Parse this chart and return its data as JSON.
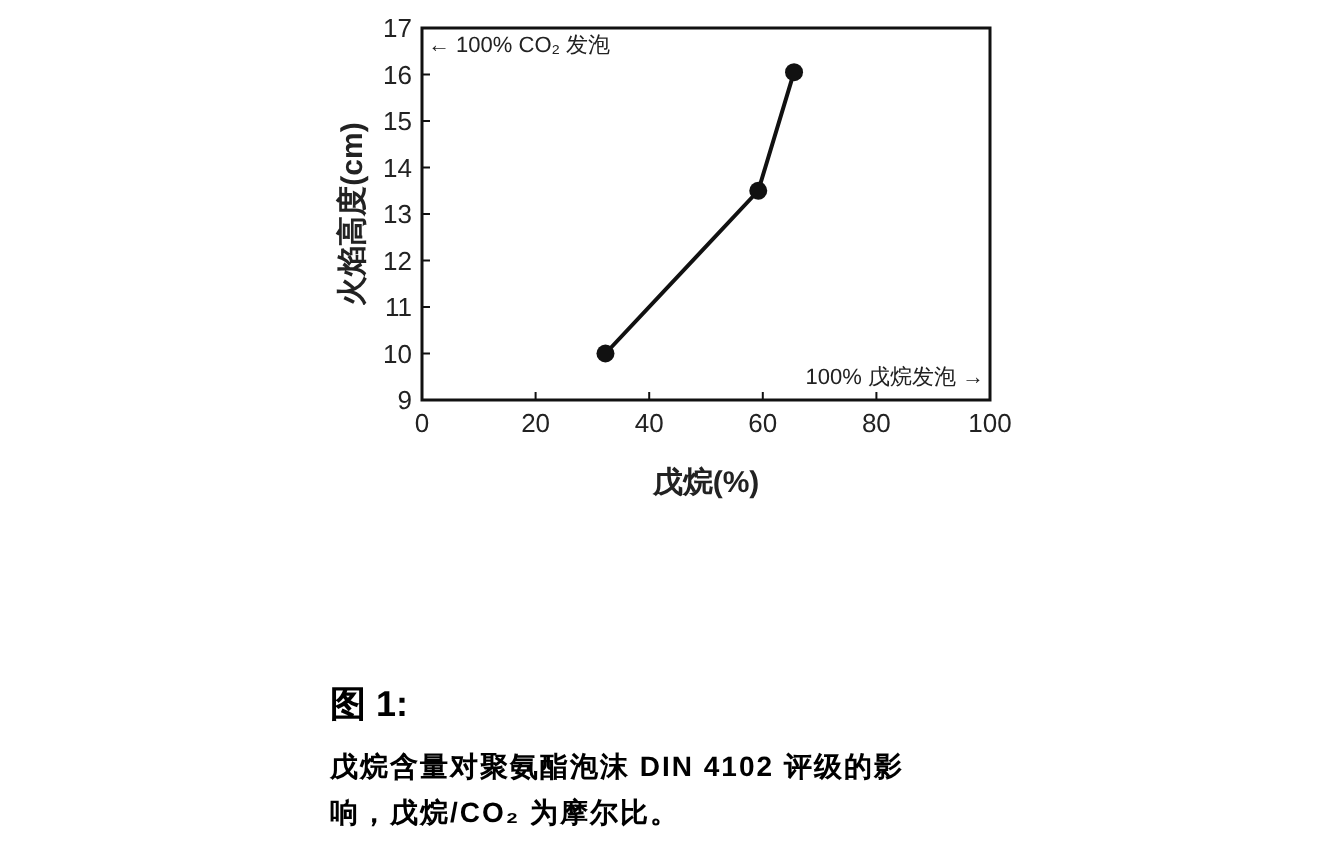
{
  "chart_data": {
    "type": "line",
    "title": "图 1:",
    "subtitle": "戊烷含量对聚氨酯泡沫 DIN 4102 评级的影响，戊烷/CO₂ 为摩尔比。",
    "xlabel": "戊烷(%)",
    "ylabel": "火焰高度(cm)",
    "x": [
      32.3,
      59.2,
      65.5
    ],
    "series": [
      {
        "color": "#111111",
        "values": [
          10,
          13.5,
          16.05
        ]
      }
    ],
    "xlim": [
      0,
      100
    ],
    "ylim": [
      9,
      17
    ],
    "xticks": [
      0,
      20,
      40,
      60,
      80,
      100
    ],
    "yticks": [
      9,
      10,
      11,
      12,
      13,
      14,
      15,
      16,
      17
    ],
    "marker": "circle",
    "grid": false,
    "annotations": [
      "← 100% CO₂ 发泡",
      "100% 戊烷发泡 →"
    ]
  }
}
